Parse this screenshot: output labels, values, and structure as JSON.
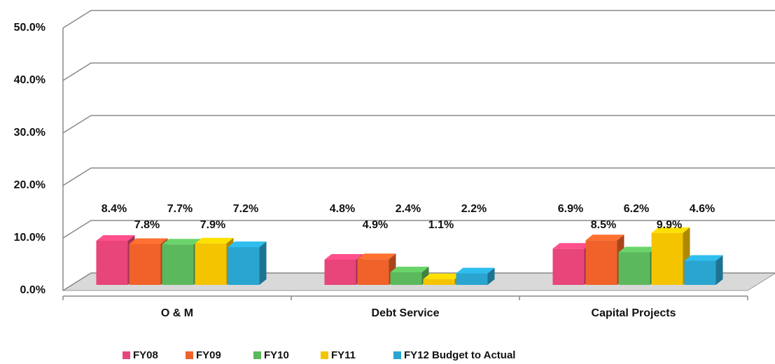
{
  "chart_data": {
    "type": "bar",
    "categories": [
      "O & M",
      "Debt Service",
      "Capital Projects"
    ],
    "series": [
      {
        "name": "FY08",
        "color": "#e8457a",
        "values": [
          8.4,
          4.8,
          6.9
        ],
        "value_labels": [
          "8.4%",
          "4.8%",
          "6.9%"
        ]
      },
      {
        "name": "FY09",
        "color": "#f0622a",
        "values": [
          7.8,
          4.9,
          8.5
        ],
        "value_labels": [
          "7.8%",
          "4.9%",
          "8.5%"
        ]
      },
      {
        "name": "FY10",
        "color": "#5cb85c",
        "values": [
          7.7,
          2.4,
          6.2
        ],
        "value_labels": [
          "7.7%",
          "2.4%",
          "6.2%"
        ]
      },
      {
        "name": "FY11",
        "color": "#f5c400",
        "values": [
          7.9,
          1.1,
          9.9
        ],
        "value_labels": [
          "7.9%",
          "1.1%",
          "9.9%"
        ]
      },
      {
        "name": "FY12 Budget to Actual",
        "color": "#2aa5d0",
        "values": [
          7.2,
          2.2,
          4.6
        ],
        "value_labels": [
          "7.2%",
          "2.2%",
          "4.6%"
        ]
      }
    ],
    "ylim": [
      0,
      50
    ],
    "yticks": [
      {
        "value": 0,
        "label": "0.0%"
      },
      {
        "value": 10,
        "label": "10.0%"
      },
      {
        "value": 20,
        "label": "20.0%"
      },
      {
        "value": 30,
        "label": "30.0%"
      },
      {
        "value": 40,
        "label": "40.0%"
      },
      {
        "value": 50,
        "label": "50.0%"
      }
    ],
    "grid": true,
    "legend": "bottom"
  }
}
